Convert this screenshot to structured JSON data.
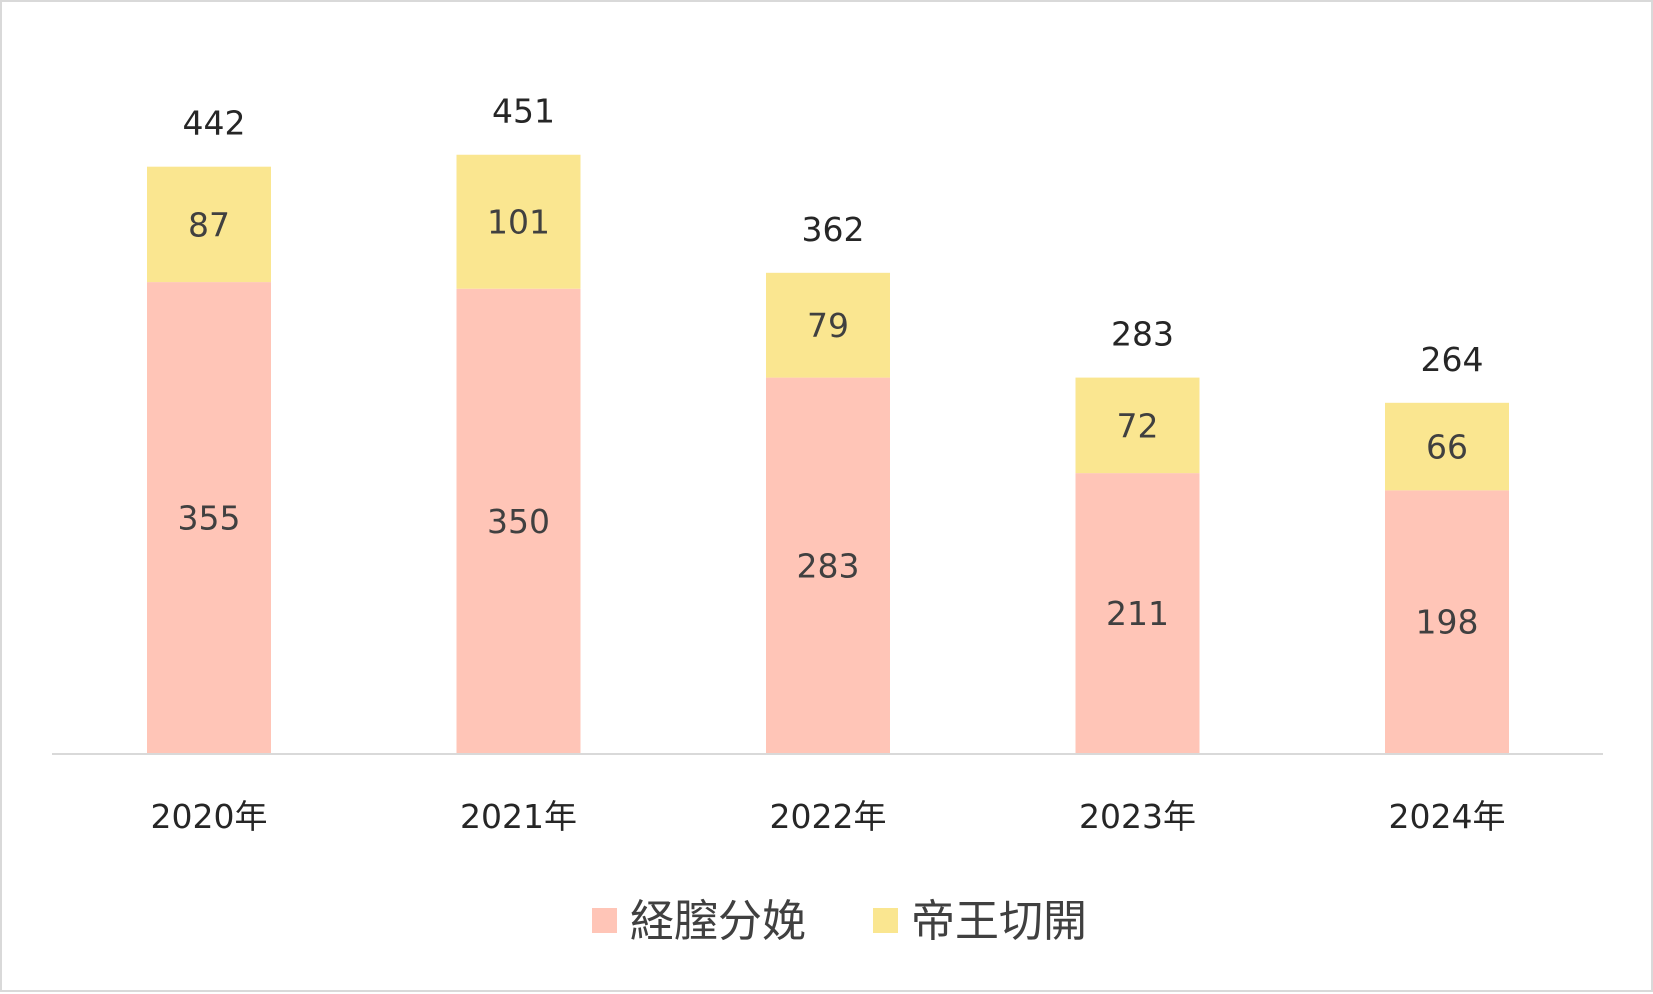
{
  "chart_data": {
    "type": "bar",
    "stacked": true,
    "categories": [
      "2020年",
      "2021年",
      "2022年",
      "2023年",
      "2024年"
    ],
    "series": [
      {
        "name": "経膣分娩",
        "values": [
          355,
          350,
          283,
          211,
          198
        ],
        "color": "#FFC5B7"
      },
      {
        "name": "帝王切開",
        "values": [
          87,
          101,
          79,
          72,
          66
        ],
        "color": "#FAE690"
      }
    ],
    "totals": [
      442,
      451,
      362,
      283,
      264
    ],
    "ylim": [
      0,
      500
    ],
    "grid": false,
    "legend": "bottom",
    "axis_color": "#d9d9d9"
  }
}
